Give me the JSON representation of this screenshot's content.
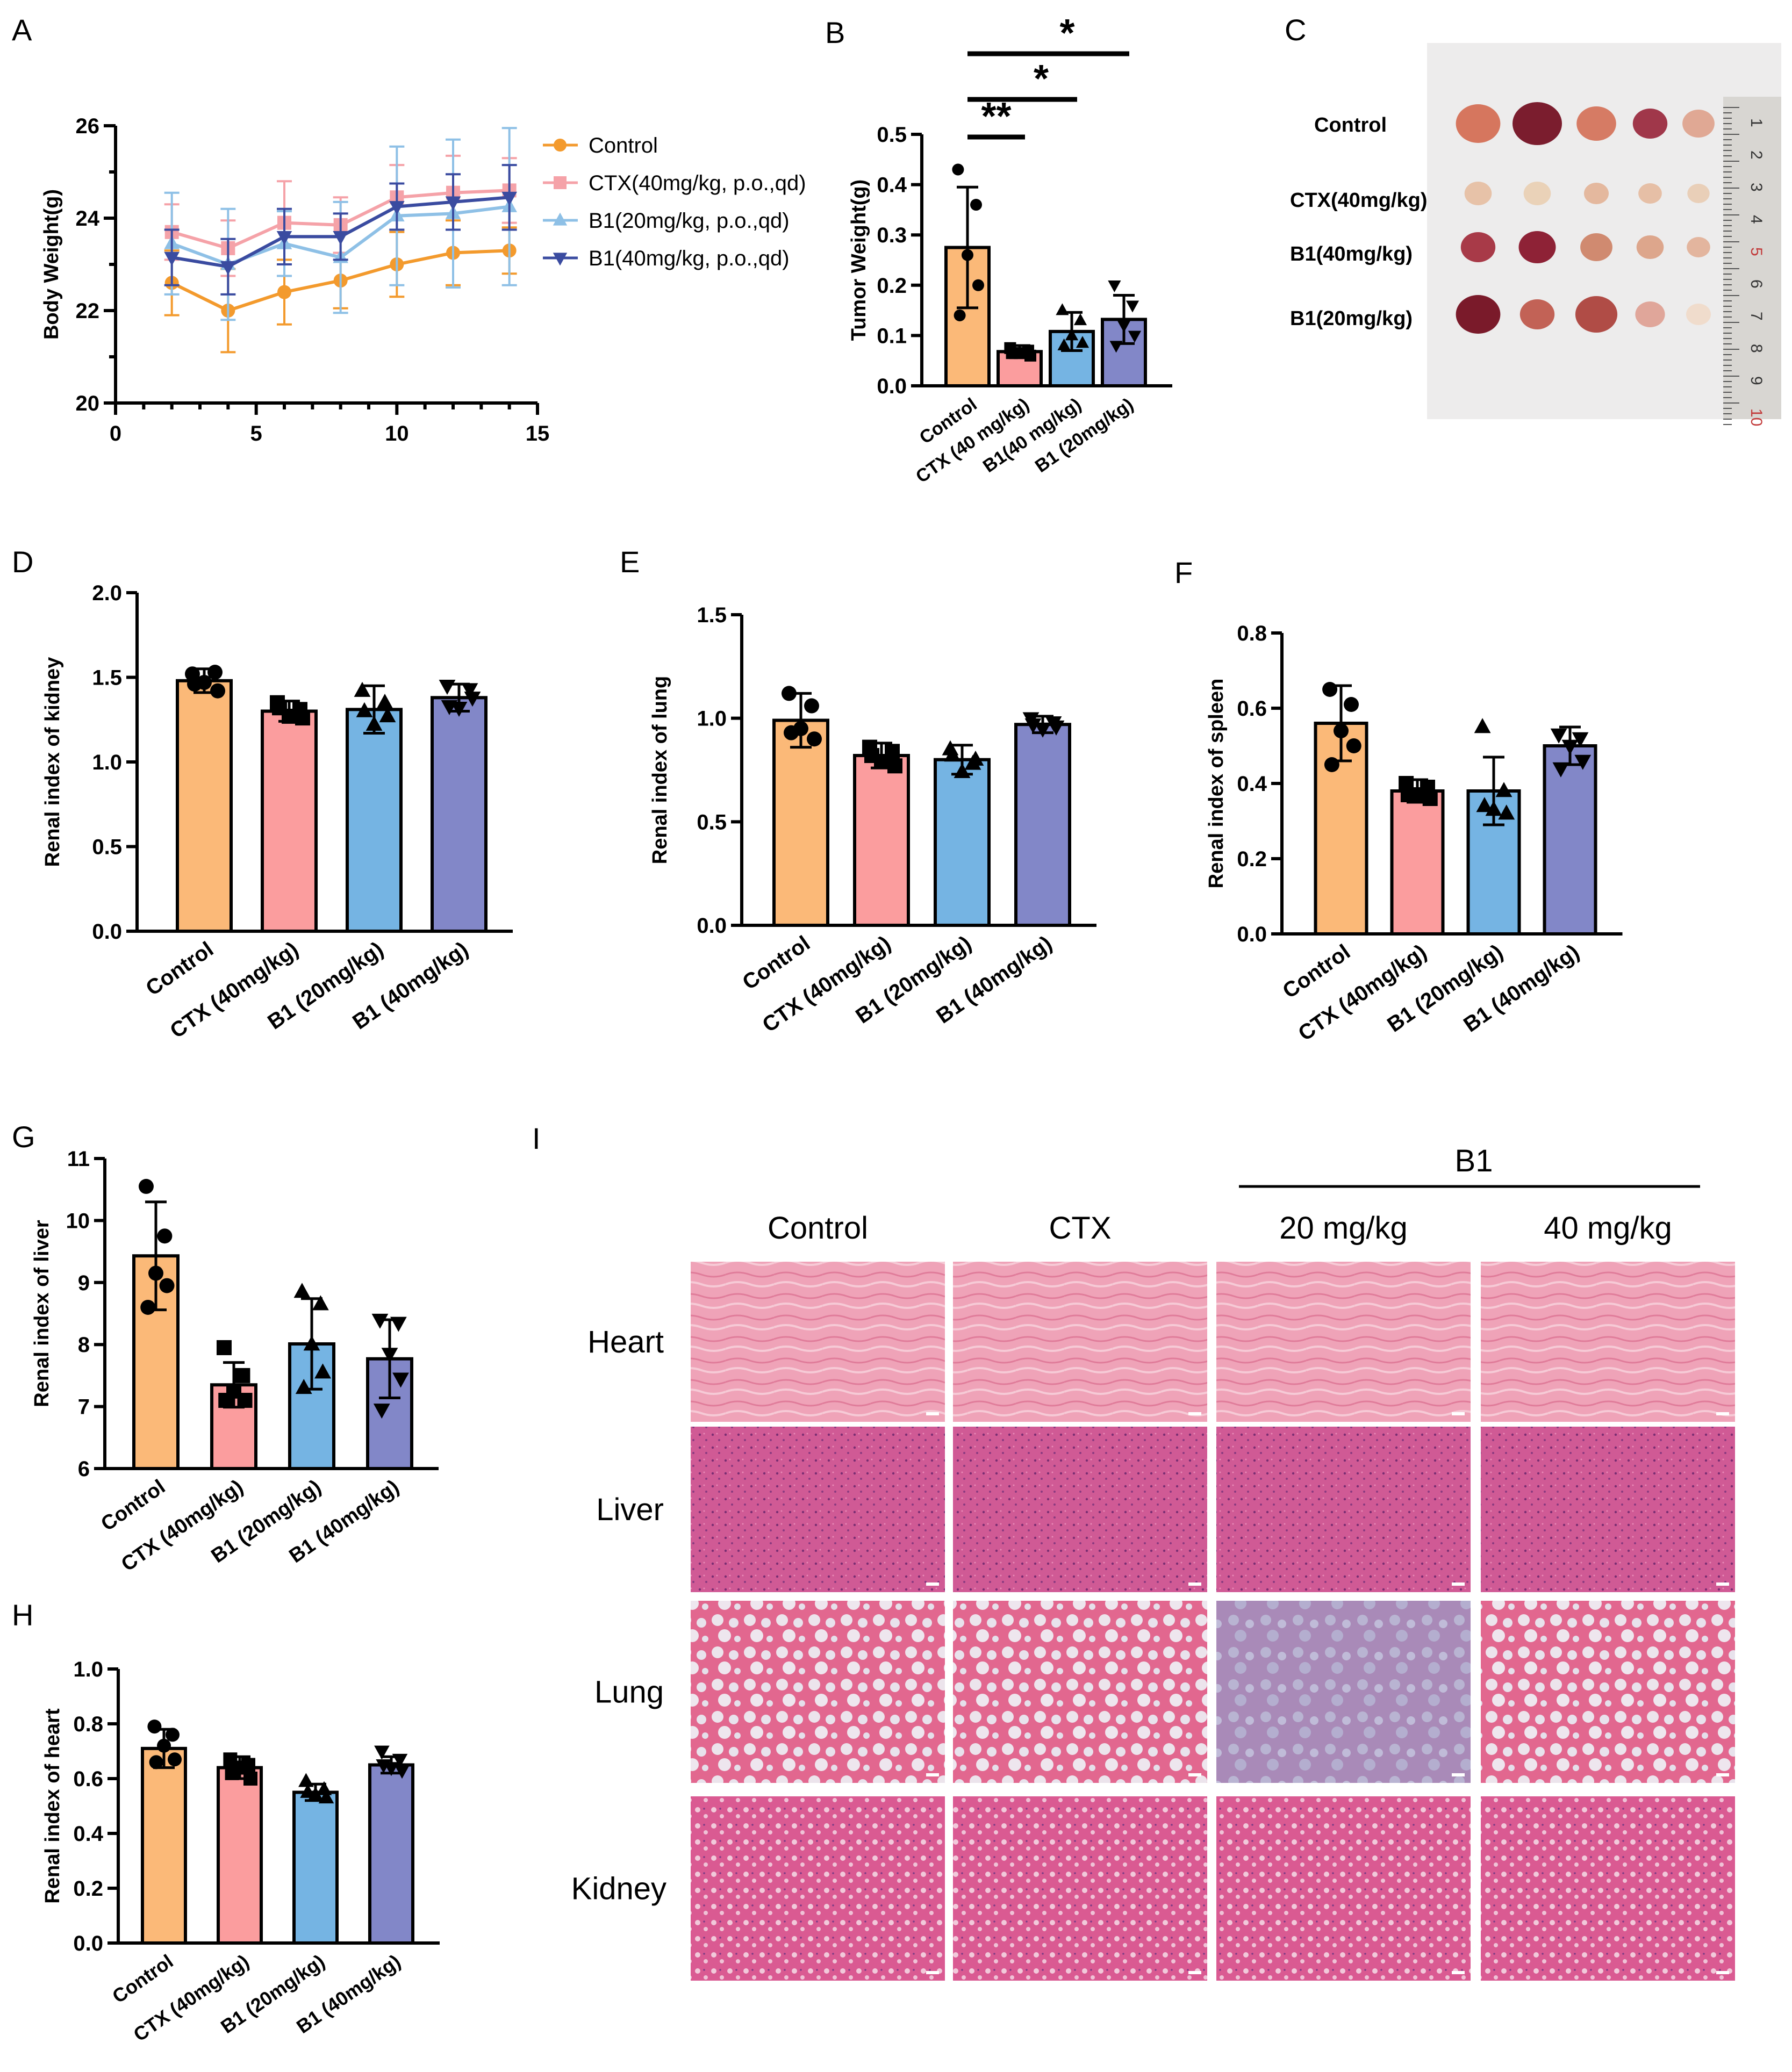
{
  "colors": {
    "control": "#FBB978",
    "ctx": "#FB9D9E",
    "b1_20": "#75B4E3",
    "b1_40": "#8287C8",
    "line_control": "#F39A2D",
    "line_ctx": "#F5A2A8",
    "line_b1_20": "#8EC0E6",
    "line_b1_40": "#3A4BA0"
  },
  "panel_letters": [
    "A",
    "B",
    "C",
    "D",
    "E",
    "F",
    "G",
    "H",
    "I"
  ],
  "chart_data": [
    {
      "id": "A",
      "type": "line",
      "xlabel": "",
      "ylabel": "Body Weight(g)",
      "xlim": [
        0,
        15
      ],
      "ylim": [
        20,
        26
      ],
      "xticks": [
        "0",
        "5",
        "10",
        "15"
      ],
      "yticks": [
        "20",
        "22",
        "24",
        "26"
      ],
      "x": [
        2,
        4,
        6,
        8,
        10,
        12,
        14
      ],
      "series": [
        {
          "name": "Control",
          "marker": "circle",
          "color": "#F39A2D",
          "values": [
            22.6,
            22.0,
            22.4,
            22.65,
            23.0,
            23.25,
            23.3
          ],
          "errors": [
            0.7,
            0.9,
            0.7,
            0.6,
            0.7,
            0.7,
            0.5
          ]
        },
        {
          "name": "CTX(40mg/kg, p.o.,qd)",
          "marker": "square",
          "color": "#F5A2A8",
          "values": [
            23.7,
            23.35,
            23.9,
            23.85,
            24.45,
            24.55,
            24.6
          ],
          "errors": [
            0.6,
            0.6,
            0.9,
            0.6,
            0.7,
            0.8,
            0.7
          ]
        },
        {
          "name": "B1(20mg/kg, p.o.,qd)",
          "marker": "triangle-up",
          "color": "#8EC0E6",
          "values": [
            23.45,
            23.0,
            23.45,
            23.15,
            24.05,
            24.1,
            24.25
          ],
          "errors": [
            1.1,
            1.2,
            0.7,
            1.2,
            1.5,
            1.6,
            1.7
          ]
        },
        {
          "name": "B1(40mg/kg, p.o.,qd)",
          "marker": "triangle-down",
          "color": "#3A4BA0",
          "values": [
            23.15,
            22.95,
            23.6,
            23.6,
            24.25,
            24.35,
            24.45
          ],
          "errors": [
            0.6,
            0.6,
            0.6,
            0.5,
            0.5,
            0.6,
            0.7
          ]
        }
      ]
    },
    {
      "id": "B",
      "type": "bar",
      "ylabel": "Tumor Weight(g)",
      "ylim": [
        0,
        0.5
      ],
      "yticks": [
        "0.0",
        "0.1",
        "0.2",
        "0.3",
        "0.4",
        "0.5"
      ],
      "categories": [
        "Control",
        "CTX (40 mg/kg)",
        "B1(40 mg/kg)",
        "B1 (20mg/kg)"
      ],
      "values": [
        0.275,
        0.068,
        0.108,
        0.132
      ],
      "errors": [
        0.12,
        0.012,
        0.038,
        0.048
      ],
      "points": [
        [
          0.43,
          0.36,
          0.26,
          0.2,
          0.14
        ],
        [
          0.075,
          0.07,
          0.065,
          0.06,
          0.065
        ],
        [
          0.15,
          0.13,
          0.1,
          0.085,
          0.08
        ],
        [
          0.2,
          0.16,
          0.12,
          0.1,
          0.08
        ]
      ],
      "significance": [
        {
          "from": 0,
          "to": 1,
          "label": "**"
        },
        {
          "from": 0,
          "to": 2,
          "label": "*"
        },
        {
          "from": 0,
          "to": 3,
          "label": "*"
        }
      ]
    },
    {
      "id": "D",
      "type": "bar",
      "ylabel": "Renal index of kidney",
      "ylim": [
        0,
        2.0
      ],
      "yticks": [
        "0.0",
        "0.5",
        "1.0",
        "1.5",
        "2.0"
      ],
      "categories": [
        "Control",
        "CTX (40mg/kg)",
        "B1 (20mg/kg)",
        "B1 (40mg/kg)"
      ],
      "values": [
        1.48,
        1.3,
        1.31,
        1.38
      ],
      "errors": [
        0.07,
        0.06,
        0.14,
        0.08
      ],
      "points": [
        [
          1.52,
          1.53,
          1.47,
          1.42,
          1.46
        ],
        [
          1.35,
          1.31,
          1.27,
          1.26,
          1.32
        ],
        [
          1.42,
          1.35,
          1.22,
          1.27,
          1.3
        ],
        [
          1.45,
          1.43,
          1.32,
          1.38,
          1.33
        ]
      ]
    },
    {
      "id": "E",
      "type": "bar",
      "ylabel": "Renal index of lung",
      "ylim": [
        0,
        1.5
      ],
      "yticks": [
        "0.0",
        "0.5",
        "1.0",
        "1.5"
      ],
      "categories": [
        "Control",
        "CTX (40mg/kg)",
        "B1 (20mg/kg)",
        "B1 (40mg/kg)"
      ],
      "values": [
        0.99,
        0.82,
        0.8,
        0.97
      ],
      "errors": [
        0.13,
        0.06,
        0.07,
        0.04
      ],
      "points": [
        [
          1.12,
          1.06,
          0.95,
          0.9,
          0.93
        ],
        [
          0.86,
          0.84,
          0.79,
          0.77,
          0.82
        ],
        [
          0.85,
          0.78,
          0.74,
          0.8,
          0.82
        ],
        [
          1.0,
          0.98,
          0.95,
          0.96,
          0.97
        ]
      ]
    },
    {
      "id": "F",
      "type": "bar",
      "ylabel": "Renal index of spleen",
      "ylim": [
        0,
        0.8
      ],
      "yticks": [
        "0.0",
        "0.2",
        "0.4",
        "0.6",
        "0.8"
      ],
      "categories": [
        "Control",
        "CTX (40mg/kg)",
        "B1 (20mg/kg)",
        "B1 (40mg/kg)"
      ],
      "values": [
        0.56,
        0.38,
        0.38,
        0.5
      ],
      "errors": [
        0.1,
        0.03,
        0.09,
        0.05
      ],
      "points": [
        [
          0.65,
          0.61,
          0.54,
          0.5,
          0.45
        ],
        [
          0.4,
          0.39,
          0.37,
          0.36,
          0.37
        ],
        [
          0.55,
          0.38,
          0.33,
          0.32,
          0.34
        ],
        [
          0.53,
          0.52,
          0.5,
          0.46,
          0.44
        ]
      ]
    },
    {
      "id": "G",
      "type": "bar",
      "ylabel": "Renal index of liver",
      "ylim": [
        6,
        11
      ],
      "yticks": [
        "6",
        "7",
        "8",
        "9",
        "10",
        "11"
      ],
      "categories": [
        "Control",
        "CTX (40mg/kg)",
        "B1 (20mg/kg)",
        "B1 (40mg/kg)"
      ],
      "values": [
        9.43,
        7.35,
        8.01,
        7.77
      ],
      "errors": [
        0.87,
        0.36,
        0.73,
        0.63
      ],
      "points": [
        [
          10.55,
          9.75,
          9.15,
          8.95,
          8.6
        ],
        [
          7.95,
          7.5,
          7.25,
          7.1,
          7.1
        ],
        [
          8.85,
          8.65,
          8.0,
          7.55,
          7.3
        ],
        [
          8.4,
          8.35,
          7.85,
          7.45,
          6.95
        ]
      ]
    },
    {
      "id": "H",
      "type": "bar",
      "ylabel": "Renal index of heart",
      "ylim": [
        0,
        1.0
      ],
      "yticks": [
        "0.0",
        "0.2",
        "0.4",
        "0.6",
        "0.8",
        "1.0"
      ],
      "categories": [
        "Control",
        "CTX (40mg/kg)",
        "B1 (20mg/kg)",
        "B1 (40mg/kg)"
      ],
      "values": [
        0.71,
        0.64,
        0.55,
        0.65
      ],
      "errors": [
        0.07,
        0.04,
        0.03,
        0.03
      ],
      "points": [
        [
          0.79,
          0.76,
          0.72,
          0.67,
          0.66
        ],
        [
          0.67,
          0.65,
          0.64,
          0.6,
          0.62
        ],
        [
          0.59,
          0.56,
          0.54,
          0.53,
          0.55
        ],
        [
          0.7,
          0.67,
          0.64,
          0.63,
          0.65
        ]
      ]
    }
  ],
  "panel_c": {
    "rows": [
      "Control",
      "CTX(40mg/kg)",
      "B1(40mg/kg)",
      "B1(20mg/kg)"
    ],
    "ruler_numbers": [
      "1",
      "2",
      "3",
      "4",
      "5",
      "6",
      "7",
      "8",
      "9",
      "10"
    ]
  },
  "panel_i": {
    "group_label": "B1",
    "columns": [
      "Control",
      "CTX",
      "20 mg/kg",
      "40 mg/kg"
    ],
    "rows": [
      "Heart",
      "Liver",
      "Lung",
      "Kidney"
    ]
  }
}
